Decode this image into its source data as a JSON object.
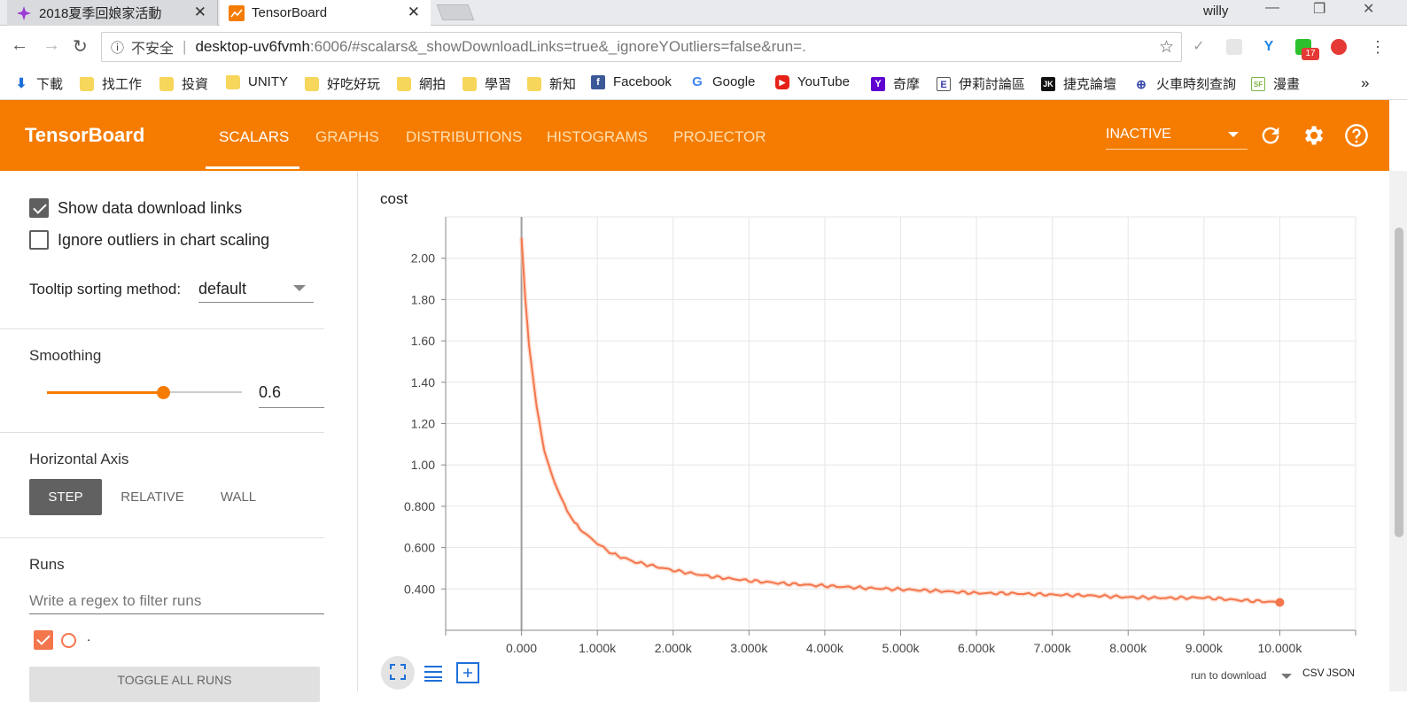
{
  "browser": {
    "tabs": [
      {
        "title": "2018夏季回娘家活動",
        "close": "✕"
      },
      {
        "title": "TensorBoard",
        "close": "✕"
      }
    ],
    "user": "willy",
    "window_controls": [
      "—",
      "❐",
      "✕"
    ],
    "address": {
      "security": "不安全",
      "host": "desktop-uv6fvmh",
      "path": ":6006/#scalars&_showDownloadLinks=true&_ignoreYOutliers=false&run=."
    },
    "extension_badge": "17",
    "bookmarks": [
      {
        "label": "下載",
        "icon": "download-icon"
      },
      {
        "label": "找工作",
        "icon": "folder-icon"
      },
      {
        "label": "投資",
        "icon": "folder-icon"
      },
      {
        "label": "UNITY",
        "icon": "folder-icon"
      },
      {
        "label": "好吃好玩",
        "icon": "folder-icon"
      },
      {
        "label": "網拍",
        "icon": "folder-icon"
      },
      {
        "label": "學習",
        "icon": "folder-icon"
      },
      {
        "label": "新知",
        "icon": "folder-icon"
      },
      {
        "label": "Facebook",
        "icon": "facebook-icon"
      },
      {
        "label": "Google",
        "icon": "google-icon"
      },
      {
        "label": "YouTube",
        "icon": "youtube-icon"
      },
      {
        "label": "奇摩",
        "icon": "yahoo-icon"
      },
      {
        "label": "伊莉討論區",
        "icon": "eyny-icon"
      },
      {
        "label": "捷克論壇",
        "icon": "jk-icon"
      },
      {
        "label": "火車時刻查詢",
        "icon": "train-icon"
      },
      {
        "label": "漫畫",
        "icon": "sf-icon"
      }
    ],
    "more": "»"
  },
  "tb": {
    "logo": "TensorBoard",
    "tabs": [
      "SCALARS",
      "GRAPHS",
      "DISTRIBUTIONS",
      "HISTOGRAMS",
      "PROJECTOR"
    ],
    "status": "INACTIVE",
    "colors": {
      "header": "#f57c00",
      "run": "#f4764d"
    }
  },
  "sidebar": {
    "show_download_links": "Show data download links",
    "ignore_outliers": "Ignore outliers in chart scaling",
    "tooltip_label": "Tooltip sorting method:",
    "tooltip_value": "default",
    "smoothing_label": "Smoothing",
    "smoothing_value": "0.6",
    "smoothing_fraction": 0.6,
    "haxis_label": "Horizontal Axis",
    "haxis_options": [
      "STEP",
      "RELATIVE",
      "WALL"
    ],
    "runs_label": "Runs",
    "runs_filter_placeholder": "Write a regex to filter runs",
    "run_name": ".",
    "toggle_all": "TOGGLE ALL RUNS"
  },
  "chart_data": {
    "type": "line",
    "title": "cost",
    "xlim": [
      -1000,
      11000
    ],
    "ylim": [
      0.2,
      2.2
    ],
    "xticks": [
      "0.000",
      "1.000k",
      "2.000k",
      "3.000k",
      "4.000k",
      "5.000k",
      "6.000k",
      "7.000k",
      "8.000k",
      "9.000k",
      "10.000k"
    ],
    "yticks": [
      "0.400",
      "0.600",
      "0.800",
      "1.00",
      "1.20",
      "1.40",
      "1.60",
      "1.80",
      "2.00"
    ],
    "series": [
      {
        "x": [
          0,
          50,
          100,
          200,
          300,
          400,
          500,
          600,
          700,
          800,
          1000,
          1200,
          1500,
          2000,
          2500,
          3000,
          3500,
          4000,
          4500,
          5000,
          5500,
          6000,
          6500,
          7000,
          7500,
          8000,
          8500,
          9000,
          9500,
          10000
        ],
        "y": [
          2.1,
          1.8,
          1.58,
          1.28,
          1.07,
          0.95,
          0.86,
          0.78,
          0.72,
          0.68,
          0.62,
          0.57,
          0.53,
          0.49,
          0.46,
          0.44,
          0.425,
          0.415,
          0.405,
          0.398,
          0.39,
          0.38,
          0.378,
          0.372,
          0.368,
          0.36,
          0.356,
          0.358,
          0.345,
          0.335
        ]
      }
    ],
    "grid": true,
    "download_label": "run to download",
    "download_formats": [
      "CSV",
      "JSON"
    ]
  }
}
